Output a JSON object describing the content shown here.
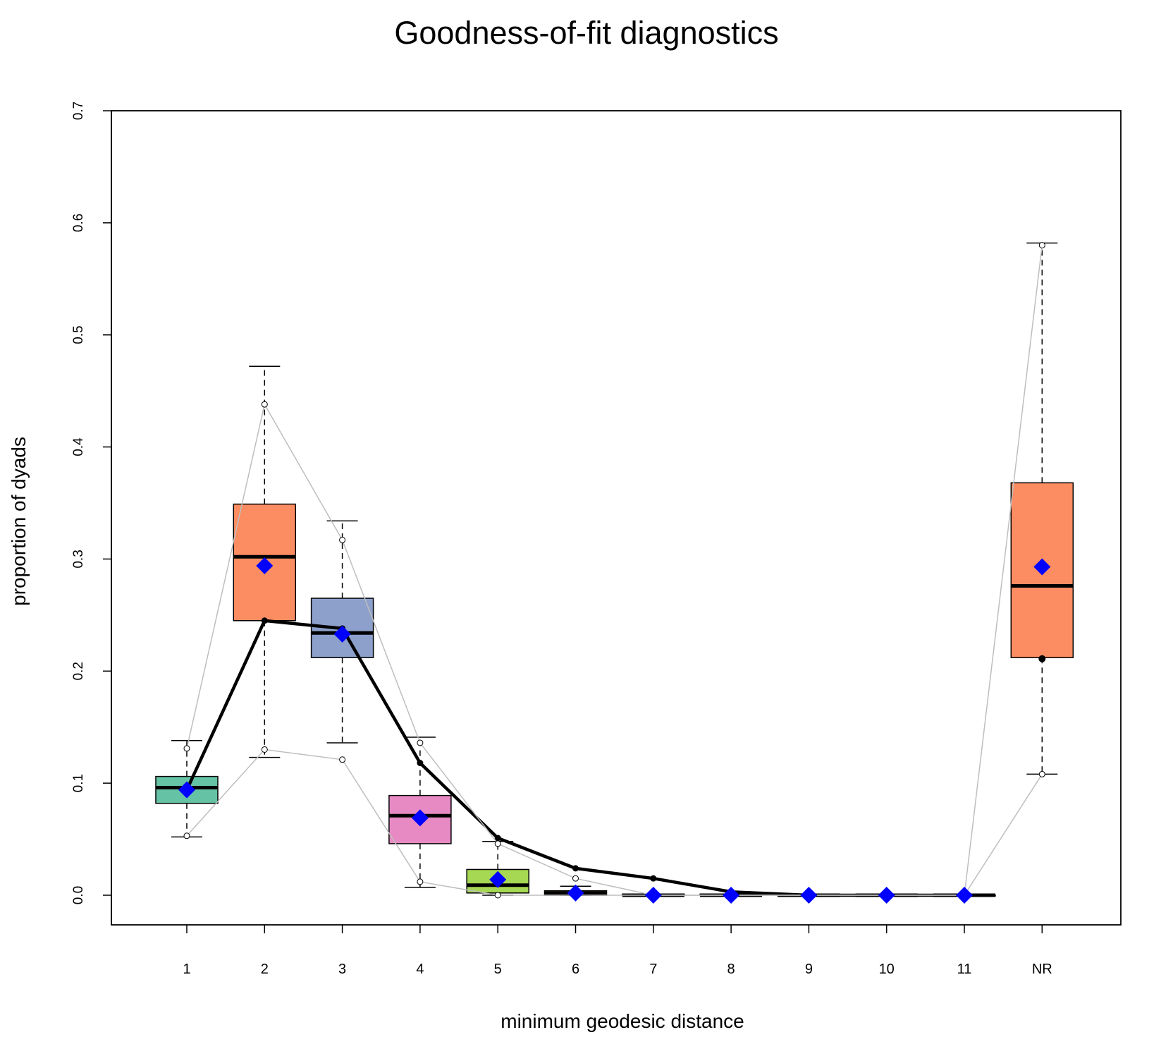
{
  "chart_data": {
    "type": "boxplot",
    "title": "Goodness-of-fit diagnostics",
    "xlabel": "minimum geodesic distance",
    "ylabel": "proportion of dyads",
    "categories": [
      "1",
      "2",
      "3",
      "4",
      "5",
      "6",
      "7",
      "8",
      "9",
      "10",
      "11",
      "NR"
    ],
    "ylim": [
      0,
      0.7
    ],
    "yticks": [
      0.0,
      0.1,
      0.2,
      0.3,
      0.4,
      0.5,
      0.6,
      0.7
    ],
    "ytick_labels": [
      "0.0",
      "0.1",
      "0.2",
      "0.3",
      "0.4",
      "0.5",
      "0.6",
      "0.7"
    ],
    "grid": false,
    "boxes": [
      {
        "category": "1",
        "whisker_low": 0.052,
        "q1": 0.082,
        "median": 0.096,
        "q3": 0.106,
        "whisker_high": 0.138,
        "fill": "#66c2a5"
      },
      {
        "category": "2",
        "whisker_low": 0.123,
        "q1": 0.245,
        "median": 0.302,
        "q3": 0.349,
        "whisker_high": 0.472,
        "fill": "#fc8d62"
      },
      {
        "category": "3",
        "whisker_low": 0.136,
        "q1": 0.212,
        "median": 0.234,
        "q3": 0.265,
        "whisker_high": 0.334,
        "fill": "#8da0cb"
      },
      {
        "category": "4",
        "whisker_low": 0.007,
        "q1": 0.046,
        "median": 0.071,
        "q3": 0.089,
        "whisker_high": 0.141,
        "fill": "#e78ac3"
      },
      {
        "category": "5",
        "whisker_low": 0.0,
        "q1": 0.002,
        "median": 0.009,
        "q3": 0.023,
        "whisker_high": 0.048,
        "fill": "#a6d854"
      },
      {
        "category": "6",
        "whisker_low": 0.0,
        "q1": 0.0,
        "median": 0.002,
        "q3": 0.004,
        "whisker_high": 0.008,
        "fill": "#ffd92f"
      },
      {
        "category": "7",
        "whisker_low": 0.0,
        "q1": 0.0,
        "median": 0.0,
        "q3": 0.001,
        "whisker_high": 0.001,
        "fill": "#e5c494"
      },
      {
        "category": "8",
        "whisker_low": 0.0,
        "q1": 0.0,
        "median": 0.0,
        "q3": 0.001,
        "whisker_high": 0.001,
        "fill": "#b3b3b3"
      },
      {
        "category": "9",
        "whisker_low": 0.0,
        "q1": 0.0,
        "median": 0.0,
        "q3": 0.0,
        "whisker_high": 0.0,
        "fill": "#66c2a5"
      },
      {
        "category": "10",
        "whisker_low": 0.0,
        "q1": 0.0,
        "median": 0.0,
        "q3": 0.0,
        "whisker_high": 0.0,
        "fill": "#fc8d62"
      },
      {
        "category": "11",
        "whisker_low": 0.0,
        "q1": 0.0,
        "median": 0.0,
        "q3": 0.0,
        "whisker_high": 0.0,
        "fill": "#8da0cb"
      },
      {
        "category": "NR",
        "whisker_low": 0.108,
        "q1": 0.212,
        "median": 0.276,
        "q3": 0.368,
        "whisker_high": 0.582,
        "fill": "#fc8d62"
      }
    ],
    "means": [
      0.094,
      0.294,
      0.233,
      0.069,
      0.014,
      0.002,
      0.0,
      0.0,
      0.0,
      0.0,
      0.0,
      0.293
    ],
    "series": [
      {
        "style": "line",
        "color": "#000000",
        "values": [
          0.094,
          0.245,
          0.238,
          0.118,
          0.051,
          0.024,
          0.015,
          0.003,
          0.0,
          0.0,
          0.0,
          null
        ],
        "overflow_end": 0.0
      },
      {
        "style": "line",
        "color": "#bebebe",
        "values": [
          0.131,
          0.438,
          0.317,
          0.136,
          0.046,
          0.015,
          0.0,
          0.0,
          0.0,
          0.0,
          0.0,
          0.58
        ]
      },
      {
        "style": "line",
        "color": "#bebebe",
        "values": [
          0.053,
          0.13,
          0.121,
          0.012,
          0.0,
          0.0,
          0.0,
          0.0,
          0.0,
          0.0,
          0.0,
          0.108
        ]
      }
    ],
    "nr_observed": 0.211,
    "colors": {
      "mean_marker": "#0000ff",
      "observed": "#000000",
      "bounds": "#bebebe"
    }
  }
}
